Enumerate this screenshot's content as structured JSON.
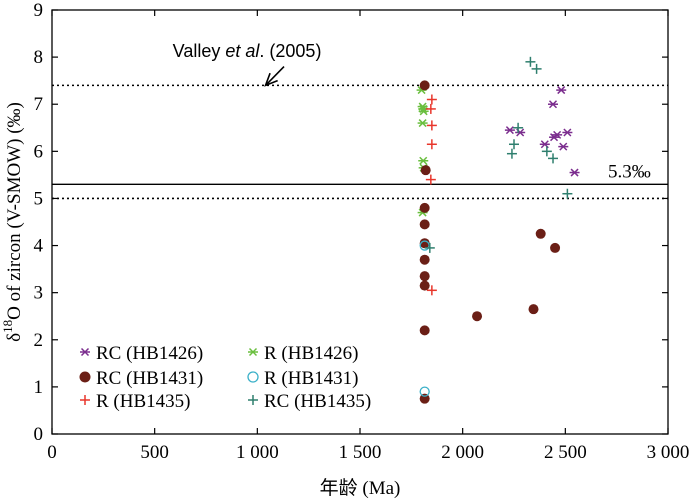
{
  "chart_data": {
    "type": "scatter",
    "title": "",
    "xlabel": "年龄 (Ma)",
    "ylabel_prefix": "δ",
    "ylabel_sup": "18",
    "ylabel_rest": "O of zircon (V-SMOW) (‰)",
    "xlim": [
      0,
      3000
    ],
    "ylim": [
      0,
      9
    ],
    "x_ticks": [
      0,
      500,
      1000,
      1500,
      2000,
      2500,
      3000
    ],
    "x_tick_labels": [
      "0",
      "500",
      "1 000",
      "1 500",
      "2 000",
      "2 500",
      "3 000"
    ],
    "y_ticks": [
      0,
      1,
      2,
      3,
      4,
      5,
      6,
      7,
      8,
      9
    ],
    "y_tick_labels": [
      "0",
      "1",
      "2",
      "3",
      "4",
      "5",
      "6",
      "7",
      "8",
      "9"
    ],
    "grid": false,
    "legend_position": "bottom-left",
    "reference_lines": [
      {
        "y": 7.4,
        "style": "dotted"
      },
      {
        "y": 5.3,
        "style": "solid",
        "label": "5.3‰"
      },
      {
        "y": 5.0,
        "style": "dotted"
      }
    ],
    "annotation": {
      "text_plain": "Valley ",
      "text_italic": "et al",
      "text_end": ". (2005)",
      "text_xy": [
        950,
        8.0
      ],
      "arrow_from": [
        1130,
        7.8
      ],
      "arrow_to": [
        1040,
        7.4
      ]
    },
    "series": [
      {
        "name": "RC (HB1426)",
        "marker": "asterisk",
        "color": "#7b2d8e",
        "points": [
          [
            2230,
            6.45
          ],
          [
            2280,
            6.4
          ],
          [
            2400,
            6.15
          ],
          [
            2440,
            7.0
          ],
          [
            2445,
            6.3
          ],
          [
            2460,
            6.35
          ],
          [
            2480,
            7.3
          ],
          [
            2490,
            6.1
          ],
          [
            2510,
            6.4
          ],
          [
            2545,
            5.55
          ]
        ]
      },
      {
        "name": "R (HB1426)",
        "marker": "asterisk",
        "color": "#6abf3f",
        "points": [
          [
            1800,
            7.3
          ],
          [
            1805,
            6.95
          ],
          [
            1808,
            6.9
          ],
          [
            1810,
            6.85
          ],
          [
            1805,
            6.6
          ],
          [
            1808,
            5.8
          ],
          [
            1810,
            5.65
          ],
          [
            1805,
            4.7
          ]
        ]
      },
      {
        "name": "RC (HB1431)",
        "marker": "filled-circle",
        "color": "#6b1f16",
        "points": [
          [
            1815,
            7.4
          ],
          [
            1820,
            5.6
          ],
          [
            1815,
            4.8
          ],
          [
            1815,
            4.45
          ],
          [
            1815,
            4.05
          ],
          [
            1815,
            3.7
          ],
          [
            1815,
            3.35
          ],
          [
            1815,
            3.15
          ],
          [
            1815,
            2.2
          ],
          [
            1815,
            0.75
          ],
          [
            2070,
            2.5
          ],
          [
            2345,
            2.65
          ],
          [
            2380,
            4.25
          ],
          [
            2450,
            3.95
          ]
        ]
      },
      {
        "name": "R (HB1431)",
        "marker": "open-circle",
        "color": "#3ab0c8",
        "points": [
          [
            1815,
            4.0
          ],
          [
            1815,
            0.9
          ]
        ]
      },
      {
        "name": "R (HB1435)",
        "marker": "plus",
        "color": "#e8362b",
        "points": [
          [
            1850,
            7.1
          ],
          [
            1845,
            6.9
          ],
          [
            1850,
            6.55
          ],
          [
            1850,
            6.15
          ],
          [
            1845,
            5.4
          ],
          [
            1850,
            3.05
          ]
        ]
      },
      {
        "name": "RC (HB1435)",
        "marker": "plus",
        "color": "#2f7f6e",
        "points": [
          [
            1840,
            3.95
          ],
          [
            2240,
            5.95
          ],
          [
            2250,
            6.15
          ],
          [
            2270,
            6.5
          ],
          [
            2330,
            7.9
          ],
          [
            2360,
            7.75
          ],
          [
            2410,
            6.0
          ],
          [
            2440,
            5.85
          ],
          [
            2510,
            5.1
          ]
        ]
      }
    ]
  }
}
